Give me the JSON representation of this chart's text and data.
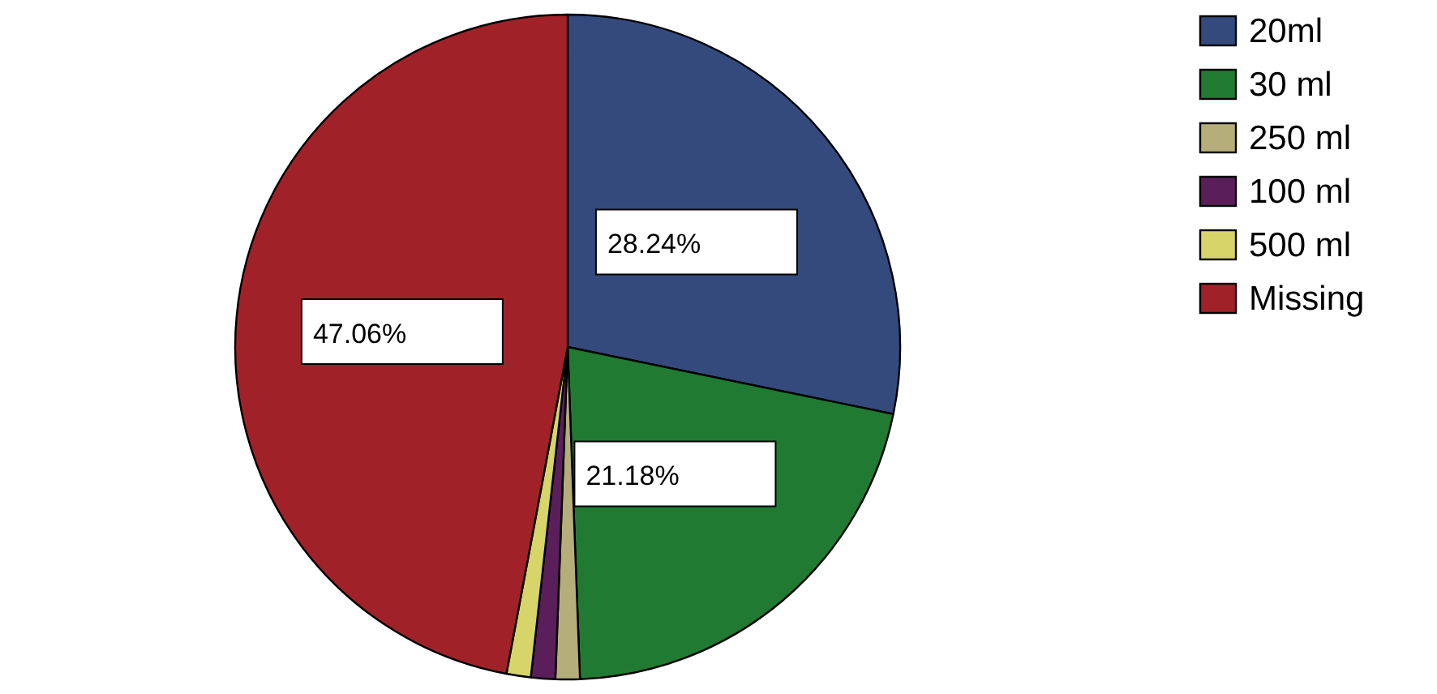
{
  "chart_data": {
    "type": "pie",
    "categories": [
      "20ml",
      "30 ml",
      "250 ml",
      "100 ml",
      "500 ml",
      "Missing"
    ],
    "values": [
      28.24,
      21.18,
      1.18,
      1.18,
      1.18,
      47.06
    ],
    "colors": [
      "#354a7c",
      "#217a32",
      "#b5ad7a",
      "#5a1e5a",
      "#d7d46a",
      "#a02228"
    ],
    "value_labels": [
      "28.24%",
      "21.18%",
      null,
      null,
      null,
      "47.06%"
    ],
    "legend": "top right"
  }
}
